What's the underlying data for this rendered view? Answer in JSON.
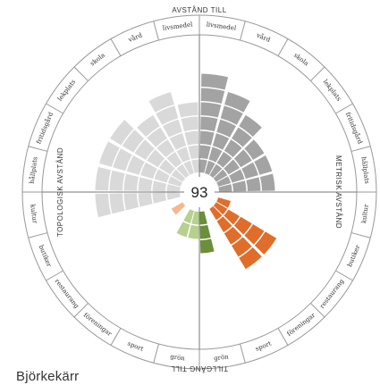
{
  "place_name": "Björkekärr",
  "score": "93",
  "chart_data": {
    "type": "radial-bar",
    "title": "",
    "axis_titles": {
      "top": "AVSTÅND TILL",
      "bottom": "TILLGÅNG TILL",
      "left": "TOPOLOGISK AVSTÅND",
      "right": "METRISK AVSTÅND"
    },
    "value_range": [
      0,
      8
    ],
    "segments": [
      {
        "label": "livsmedel",
        "value": 7,
        "group": "metrisk"
      },
      {
        "label": "vård",
        "value": 6,
        "group": "metrisk"
      },
      {
        "label": "skola",
        "value": 5,
        "group": "metrisk"
      },
      {
        "label": "lekplats",
        "value": 4,
        "group": "metrisk"
      },
      {
        "label": "fritidsgård",
        "value": 4,
        "group": "metrisk"
      },
      {
        "label": "hållplats",
        "value": 4,
        "group": "metrisk"
      },
      {
        "label": "kultur",
        "value": 0,
        "group": "metrisk"
      },
      {
        "label": "butiker",
        "value": 1,
        "group": "tillgang_orange"
      },
      {
        "label": "restaurang",
        "value": 5,
        "group": "tillgang_orange"
      },
      {
        "label": "föreningar",
        "value": 5,
        "group": "tillgang_orange"
      },
      {
        "label": "sport",
        "value": 0,
        "group": "tillgang_orange"
      },
      {
        "label": "grön",
        "value": 3,
        "group": "tillgang_green_dark"
      },
      {
        "label": "grön",
        "value": 2,
        "group": "tillgang_green_light"
      },
      {
        "label": "sport",
        "value": 2,
        "group": "tillgang_green_light"
      },
      {
        "label": "föreningar",
        "value": 0,
        "group": "tillgang_peach"
      },
      {
        "label": "restaurang",
        "value": 1,
        "group": "tillgang_peach"
      },
      {
        "label": "butiker",
        "value": 0,
        "group": "tillgang_peach"
      },
      {
        "label": "kultur",
        "value": 6,
        "group": "topologisk"
      },
      {
        "label": "hållplats",
        "value": 6,
        "group": "topologisk"
      },
      {
        "label": "fritidsgård",
        "value": 6,
        "group": "topologisk"
      },
      {
        "label": "lekplats",
        "value": 6,
        "group": "topologisk"
      },
      {
        "label": "skola",
        "value": 5,
        "group": "topologisk"
      },
      {
        "label": "vård",
        "value": 6,
        "group": "topologisk"
      },
      {
        "label": "livsmedel",
        "value": 5,
        "group": "topologisk"
      }
    ],
    "colors": {
      "metrisk": "#a3a3a3",
      "topologisk": "#d9d9d9",
      "tillgang_orange": "#e06d2a",
      "tillgang_peach": "#f5b78c",
      "tillgang_green_dark": "#6b8f3a",
      "tillgang_green_light": "#b6d08e",
      "ring_stroke": "#999999",
      "axis_line": "#777777"
    }
  }
}
